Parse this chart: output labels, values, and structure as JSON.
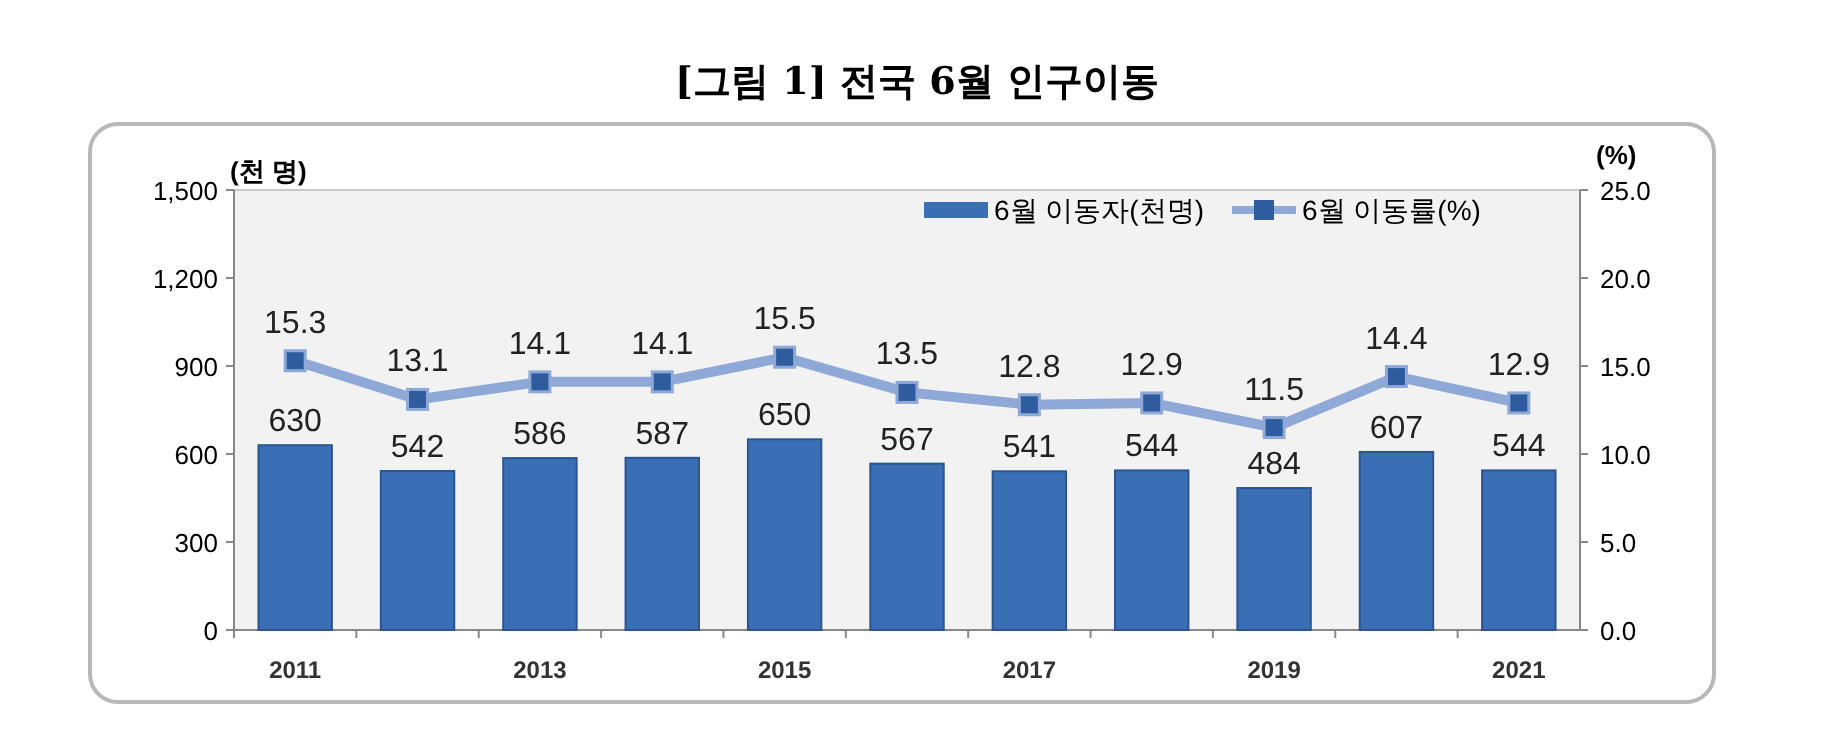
{
  "chart_data": {
    "type": "bar",
    "title": "[그림 1] 전국 6월 인구이동",
    "ylabel": "(천 명)",
    "y2label": "(%)",
    "categories": [
      "2011",
      null,
      "2013",
      null,
      "2015",
      null,
      "2017",
      null,
      "2019",
      null,
      "2021"
    ],
    "series": [
      {
        "name": "6월 이동자(천명)",
        "color": "#3a6fb5",
        "values": [
          630,
          542,
          586,
          587,
          650,
          567,
          541,
          544,
          484,
          607,
          544
        ]
      },
      {
        "name": "6월 이동률(%)",
        "type": "line",
        "axis": "y2",
        "color": "#8ea9d8",
        "marker": "square",
        "values": [
          15.3,
          13.1,
          14.1,
          14.1,
          15.5,
          13.5,
          12.8,
          12.9,
          11.5,
          14.4,
          12.9
        ]
      }
    ],
    "ylim": [
      0,
      1500
    ],
    "yticks": [
      0,
      300,
      600,
      900,
      {
        "value": 1200,
        "label": "1,200"
      },
      {
        "value": 1500,
        "label": "1,500"
      }
    ],
    "y2lim": [
      0,
      25
    ],
    "y2ticks": [
      {
        "value": 0,
        "label": "0.0"
      },
      {
        "value": 5,
        "label": "5.0"
      },
      {
        "value": 10,
        "label": "10.0"
      },
      {
        "value": 15,
        "label": "15.0"
      },
      {
        "value": 20,
        "label": "20.0"
      },
      {
        "value": 25,
        "label": "25.0"
      }
    ],
    "data_labels": true,
    "legend": "top right",
    "grid": false
  }
}
